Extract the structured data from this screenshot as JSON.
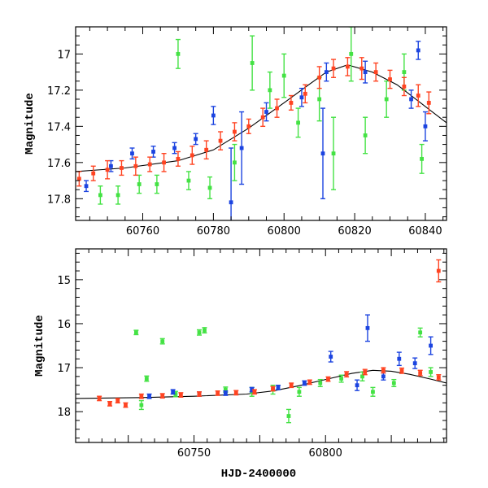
{
  "chart_data": [
    {
      "type": "scatter",
      "panel": "top",
      "title": "",
      "xlabel": "",
      "ylabel": "Magnitude",
      "xlim": [
        60741,
        60846
      ],
      "ylim": [
        17.92,
        16.85
      ],
      "y_inverted": true,
      "grid": false,
      "legend": "none",
      "xticks": [
        60760,
        60780,
        60800,
        60820,
        60840
      ],
      "yticks": [
        17.0,
        17.2,
        17.4,
        17.6,
        17.8
      ],
      "xtick_labels": [
        "60760",
        "60780",
        "60800",
        "60820",
        "60840"
      ],
      "ytick_labels": [
        "17",
        "17.2",
        "17.4",
        "17.6",
        "17.8"
      ],
      "series": [
        {
          "color": "#ff4422",
          "x": [
            60742,
            60746,
            60750,
            60754,
            60758,
            60762,
            60766,
            60770,
            60774,
            60778,
            60782,
            60786,
            60790,
            60794,
            60798,
            60802,
            60806,
            60810,
            60814,
            60818,
            60822,
            60826,
            60830,
            60834,
            60838,
            60841
          ],
          "y": [
            17.69,
            17.66,
            17.64,
            17.63,
            17.62,
            17.61,
            17.6,
            17.58,
            17.56,
            17.53,
            17.48,
            17.43,
            17.4,
            17.35,
            17.3,
            17.27,
            17.22,
            17.13,
            17.08,
            17.07,
            17.08,
            17.1,
            17.14,
            17.18,
            17.23,
            17.27
          ],
          "err": [
            0.04,
            0.04,
            0.05,
            0.04,
            0.05,
            0.04,
            0.05,
            0.04,
            0.05,
            0.05,
            0.05,
            0.05,
            0.04,
            0.05,
            0.05,
            0.04,
            0.05,
            0.06,
            0.05,
            0.05,
            0.06,
            0.05,
            0.05,
            0.05,
            0.06,
            0.06
          ]
        },
        {
          "color": "#1c44e0",
          "x": [
            60744,
            60751,
            60757,
            60763,
            60769,
            60775,
            60780,
            60785,
            60788,
            60795,
            60805,
            60811,
            60812,
            60823,
            60836,
            60838,
            60840
          ],
          "y": [
            17.73,
            17.62,
            17.55,
            17.54,
            17.52,
            17.47,
            17.34,
            17.82,
            17.52,
            17.32,
            17.24,
            17.55,
            17.1,
            17.1,
            17.25,
            16.98,
            17.4
          ],
          "err": [
            0.03,
            0.03,
            0.03,
            0.03,
            0.03,
            0.03,
            0.05,
            0.3,
            0.2,
            0.05,
            0.05,
            0.25,
            0.05,
            0.06,
            0.05,
            0.05,
            0.08
          ]
        },
        {
          "color": "#44e244",
          "x": [
            60748,
            60753,
            60759,
            60764,
            60770,
            60773,
            60779,
            60786,
            60791,
            60796,
            60800,
            60804,
            60810,
            60814,
            60819,
            60823,
            60829,
            60834,
            60839
          ],
          "y": [
            17.78,
            17.78,
            17.72,
            17.72,
            17.0,
            17.7,
            17.74,
            17.6,
            17.05,
            17.2,
            17.12,
            17.38,
            17.25,
            17.55,
            17.0,
            17.45,
            17.25,
            17.1,
            17.58
          ],
          "err": [
            0.05,
            0.05,
            0.05,
            0.05,
            0.08,
            0.05,
            0.06,
            0.1,
            0.15,
            0.1,
            0.12,
            0.08,
            0.12,
            0.2,
            0.15,
            0.1,
            0.1,
            0.1,
            0.08
          ]
        }
      ],
      "model_curve": {
        "color": "#000000",
        "x": [
          60741,
          60755,
          60770,
          60780,
          60790,
          60800,
          60807,
          60812,
          60818,
          60825,
          60832,
          60840,
          60846
        ],
        "y": [
          17.65,
          17.63,
          17.59,
          17.53,
          17.41,
          17.27,
          17.17,
          17.1,
          17.06,
          17.1,
          17.17,
          17.29,
          17.38
        ]
      }
    },
    {
      "type": "scatter",
      "panel": "bottom",
      "title": "",
      "xlabel": "HJD-2400000",
      "ylabel": "Magnitude",
      "xlim": [
        60705,
        60846
      ],
      "ylim": [
        18.7,
        14.3
      ],
      "y_inverted": true,
      "grid": false,
      "legend": "none",
      "xticks": [
        60750,
        60800
      ],
      "yticks": [
        15,
        16,
        17,
        18
      ],
      "xtick_labels": [
        "60750",
        "60800"
      ],
      "ytick_labels": [
        "15",
        "16",
        "17",
        "18"
      ],
      "series": [
        {
          "color": "#ff4422",
          "x": [
            60714,
            60718,
            60721,
            60724,
            60730,
            60738,
            60745,
            60752,
            60759,
            60766,
            60773,
            60780,
            60787,
            60794,
            60801,
            60808,
            60815,
            60822,
            60829,
            60836,
            60843,
            60843
          ],
          "y": [
            17.7,
            17.82,
            17.75,
            17.85,
            17.65,
            17.64,
            17.62,
            17.6,
            17.58,
            17.57,
            17.55,
            17.48,
            17.4,
            17.33,
            17.26,
            17.15,
            17.1,
            17.06,
            17.07,
            17.12,
            17.22,
            14.8
          ],
          "err": [
            0.05,
            0.05,
            0.05,
            0.05,
            0.05,
            0.05,
            0.05,
            0.05,
            0.05,
            0.05,
            0.05,
            0.05,
            0.05,
            0.05,
            0.05,
            0.06,
            0.06,
            0.06,
            0.06,
            0.06,
            0.06,
            0.25
          ]
        },
        {
          "color": "#1c44e0",
          "x": [
            60733,
            60742,
            60752,
            60762,
            60772,
            60782,
            60792,
            60802,
            60812,
            60816,
            60822,
            60828,
            60834,
            60840
          ],
          "y": [
            17.65,
            17.55,
            17.6,
            17.58,
            17.5,
            17.45,
            17.35,
            16.75,
            17.4,
            16.1,
            17.2,
            16.8,
            16.9,
            16.5
          ],
          "err": [
            0.05,
            0.05,
            0.05,
            0.05,
            0.05,
            0.05,
            0.05,
            0.12,
            0.12,
            0.3,
            0.08,
            0.15,
            0.12,
            0.2
          ]
        },
        {
          "color": "#44e244",
          "x": [
            60728,
            60730,
            60732,
            60738,
            60743,
            60752,
            60754,
            60762,
            60772,
            60780,
            60786,
            60790,
            60798,
            60806,
            60814,
            60818,
            60826,
            60836,
            60840
          ],
          "y": [
            16.2,
            17.85,
            17.25,
            16.4,
            17.6,
            16.2,
            16.15,
            17.5,
            17.55,
            17.5,
            18.1,
            17.55,
            17.35,
            17.25,
            17.2,
            17.55,
            17.35,
            16.2,
            17.1
          ],
          "err": [
            0.05,
            0.1,
            0.06,
            0.06,
            0.06,
            0.06,
            0.06,
            0.06,
            0.1,
            0.1,
            0.15,
            0.1,
            0.08,
            0.08,
            0.1,
            0.1,
            0.08,
            0.1,
            0.1
          ]
        }
      ],
      "model_curve": {
        "color": "#000000",
        "x": [
          60705,
          60730,
          60750,
          60770,
          60780,
          60790,
          60800,
          60810,
          60818,
          60825,
          60832,
          60840,
          60846
        ],
        "y": [
          17.7,
          17.68,
          17.65,
          17.6,
          17.53,
          17.41,
          17.27,
          17.13,
          17.06,
          17.08,
          17.15,
          17.26,
          17.35
        ]
      }
    }
  ]
}
